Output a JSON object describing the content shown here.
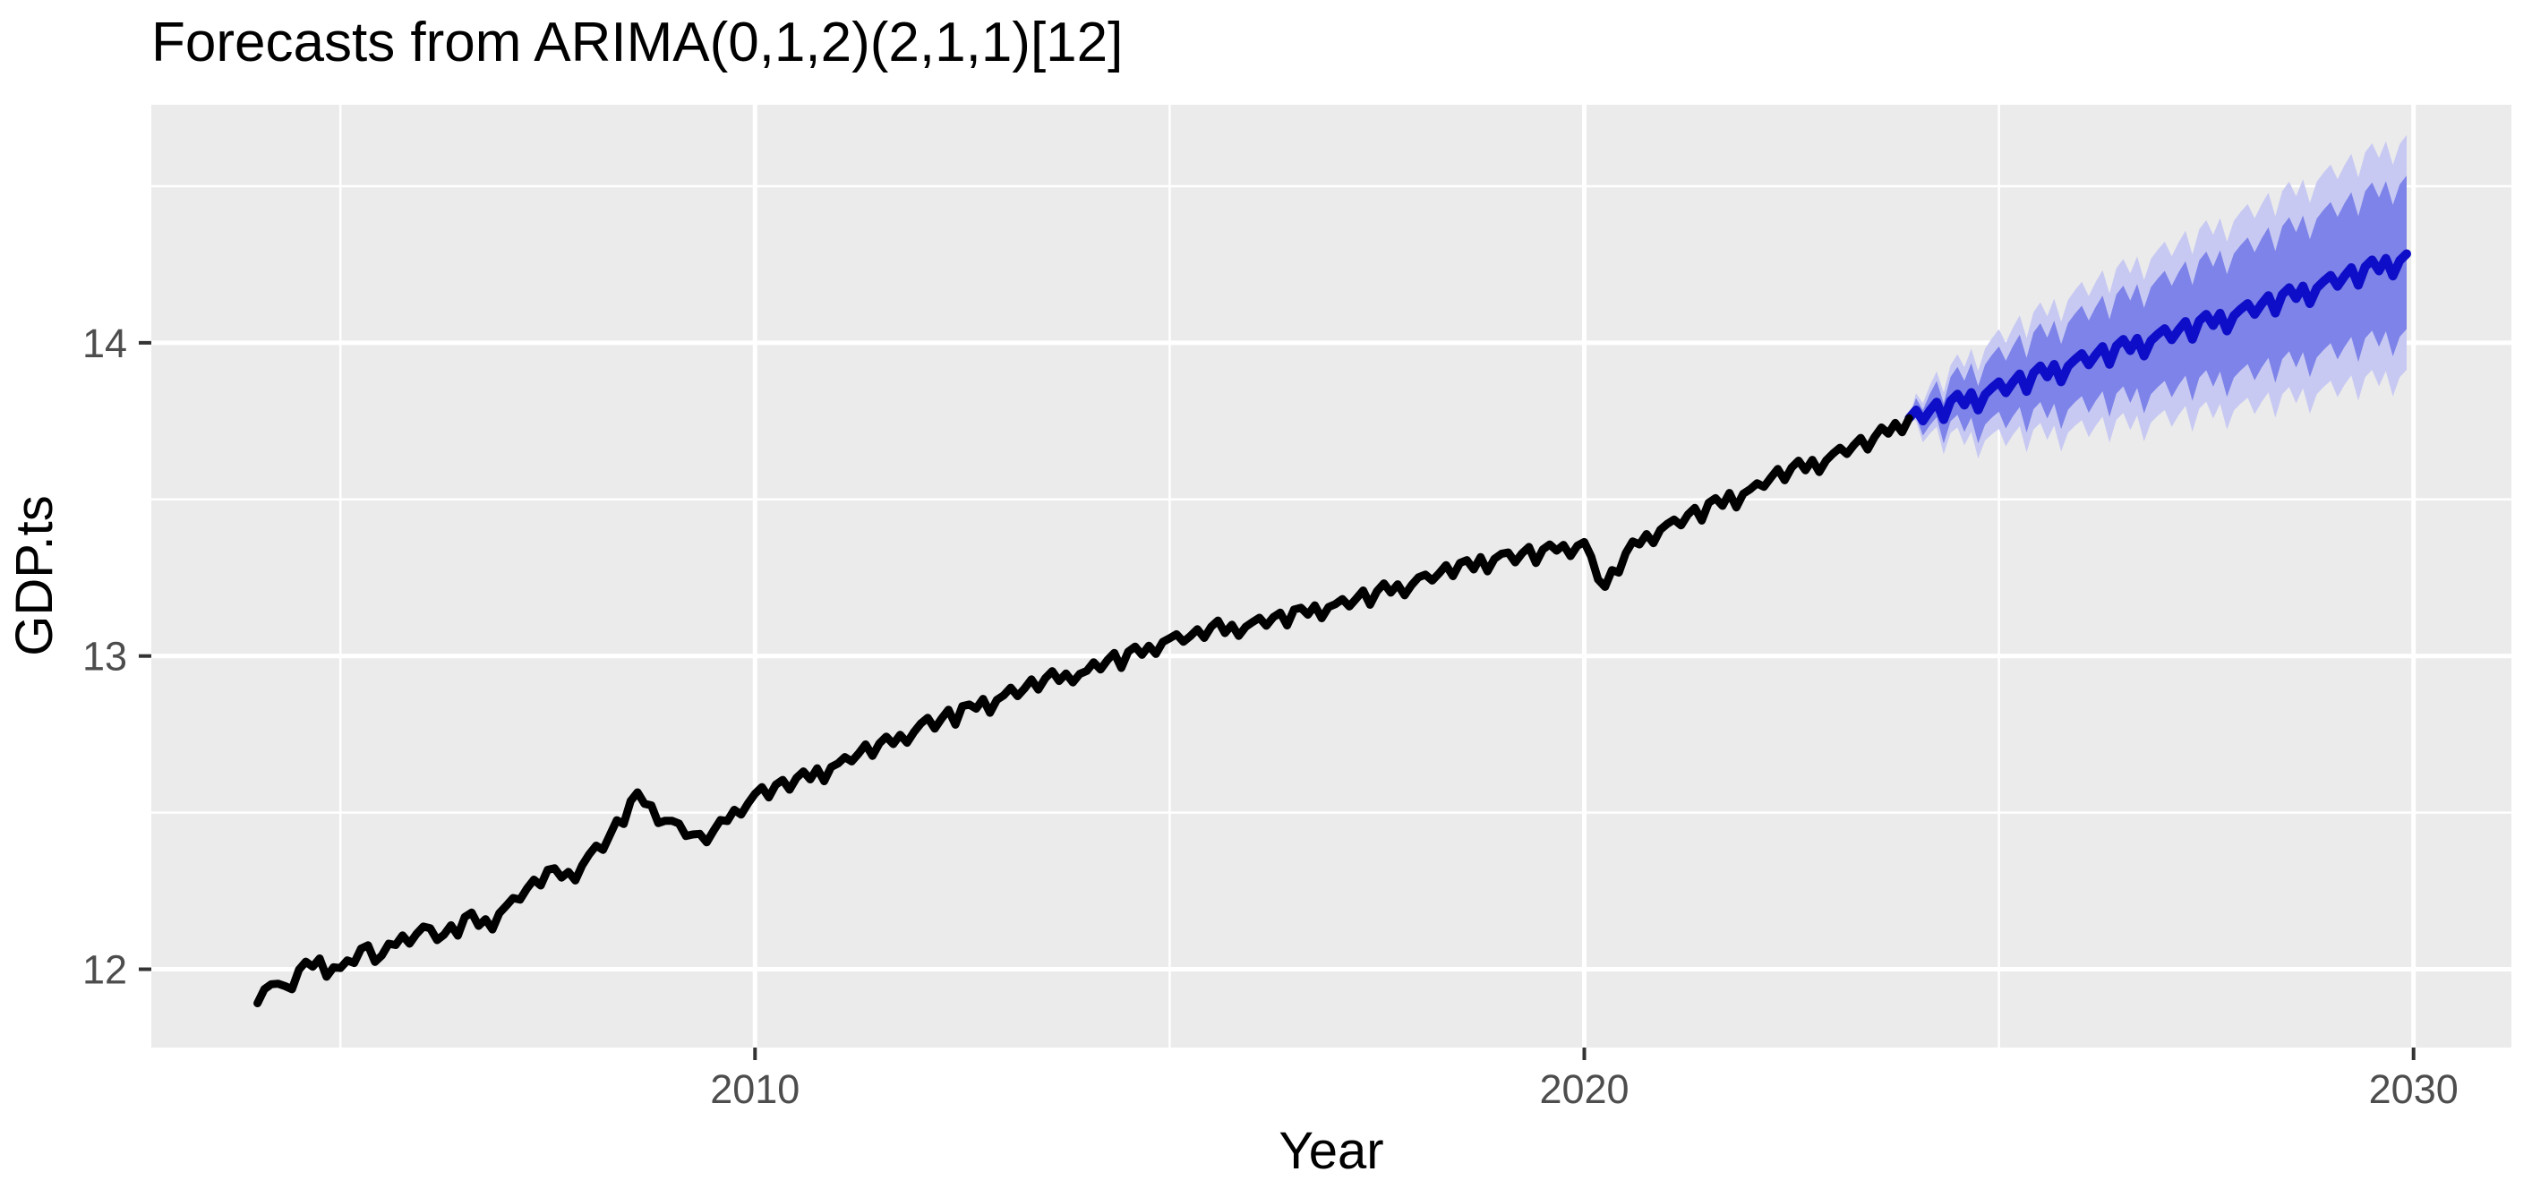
{
  "page": {
    "background": "#FFFFFF"
  },
  "chart_data": {
    "type": "line",
    "title": "Forecasts from ARIMA(0,1,2)(2,1,1)[12]",
    "xlabel": "Year",
    "ylabel": "GDP.ts",
    "legend": "none",
    "panel_background": "#EBEBEB",
    "grid_color": "#FFFFFF",
    "tick_color": "#333333",
    "tick_label_color": "#4D4D4D",
    "x_major_ticks": [
      2010,
      2020,
      2030
    ],
    "x_minor_ticks": [
      2005,
      2015,
      2025
    ],
    "y_major_ticks": [
      12,
      13,
      14
    ],
    "y_minor_ticks": [
      12.5,
      13.5,
      14.5
    ],
    "xlim": [
      2002.72,
      2031.18
    ],
    "ylim": [
      11.75,
      14.76
    ],
    "frequency": 12,
    "series": [
      {
        "name": "observed",
        "color": "#000000",
        "start": 2004.0,
        "end": 2023.9167,
        "anchors": [
          [
            2004.0,
            11.88
          ],
          [
            2004.17,
            11.96
          ],
          [
            2004.33,
            11.93
          ],
          [
            2004.5,
            11.99
          ],
          [
            2004.75,
            12.02
          ],
          [
            2005.0,
            11.99
          ],
          [
            2005.25,
            12.06
          ],
          [
            2005.5,
            12.04
          ],
          [
            2005.75,
            12.1
          ],
          [
            2006.0,
            12.13
          ],
          [
            2006.25,
            12.1
          ],
          [
            2006.5,
            12.16
          ],
          [
            2006.75,
            12.14
          ],
          [
            2007.0,
            12.2
          ],
          [
            2007.25,
            12.25
          ],
          [
            2007.5,
            12.31
          ],
          [
            2007.75,
            12.29
          ],
          [
            2008.0,
            12.36
          ],
          [
            2008.25,
            12.42
          ],
          [
            2008.58,
            12.55
          ],
          [
            2008.83,
            12.49
          ],
          [
            2009.0,
            12.47
          ],
          [
            2009.33,
            12.41
          ],
          [
            2009.58,
            12.45
          ],
          [
            2009.83,
            12.52
          ],
          [
            2010.0,
            12.55
          ],
          [
            2010.5,
            12.6
          ],
          [
            2011.0,
            12.65
          ],
          [
            2011.5,
            12.71
          ],
          [
            2012.0,
            12.77
          ],
          [
            2012.5,
            12.82
          ],
          [
            2013.0,
            12.87
          ],
          [
            2013.5,
            12.92
          ],
          [
            2014.0,
            12.95
          ],
          [
            2014.5,
            13.0
          ],
          [
            2015.0,
            13.05
          ],
          [
            2015.5,
            13.08
          ],
          [
            2016.0,
            13.1
          ],
          [
            2016.5,
            13.13
          ],
          [
            2017.0,
            13.16
          ],
          [
            2017.5,
            13.2
          ],
          [
            2018.0,
            13.24
          ],
          [
            2018.5,
            13.28
          ],
          [
            2019.0,
            13.31
          ],
          [
            2019.5,
            13.33
          ],
          [
            2020.0,
            13.35
          ],
          [
            2020.25,
            13.22
          ],
          [
            2020.42,
            13.29
          ],
          [
            2020.67,
            13.36
          ],
          [
            2021.0,
            13.41
          ],
          [
            2021.5,
            13.47
          ],
          [
            2022.0,
            13.53
          ],
          [
            2022.5,
            13.59
          ],
          [
            2023.0,
            13.64
          ],
          [
            2023.42,
            13.68
          ],
          [
            2023.75,
            13.73
          ],
          [
            2023.9167,
            13.76
          ]
        ]
      },
      {
        "name": "forecast-mean",
        "color": "#0E0EC8",
        "start": 2024.0,
        "end": 2029.9167,
        "anchors": [
          [
            2024.0,
            13.76
          ],
          [
            2025.0,
            13.85
          ],
          [
            2026.0,
            13.94
          ],
          [
            2027.0,
            14.02
          ],
          [
            2028.0,
            14.1
          ],
          [
            2029.0,
            14.19
          ],
          [
            2029.9167,
            14.27
          ]
        ]
      }
    ],
    "intervals": [
      {
        "level": 95,
        "fill": "#C7C9F2",
        "half_width_at_end": 0.375
      },
      {
        "level": 80,
        "fill": "#7D83E8",
        "half_width_at_end": 0.245
      }
    ],
    "seasonal_pattern": [
      0.01,
      0.018,
      -0.012,
      0.006,
      0.02,
      -0.025,
      0.012,
      0.022,
      -0.008,
      0.015,
      -0.03,
      0.0
    ],
    "forecast_seasonal_scale": 1.4,
    "band_edge_seasonal_extra": 0.5,
    "noise": {
      "seed": 42,
      "amplitude": 0.008
    }
  }
}
